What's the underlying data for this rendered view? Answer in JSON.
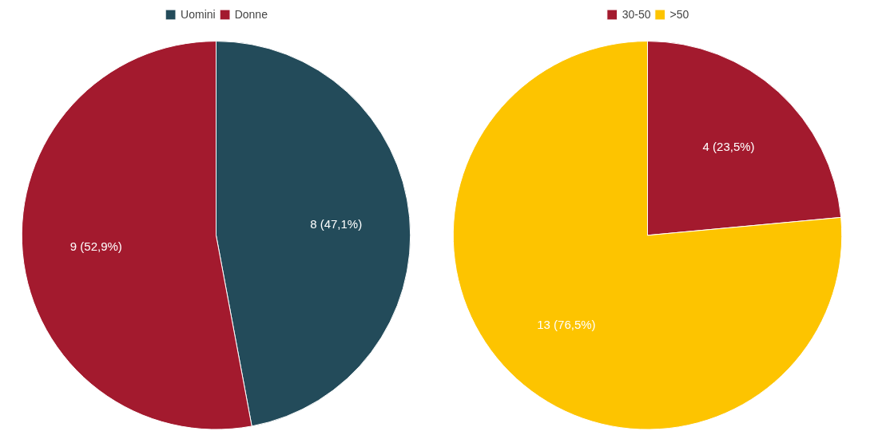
{
  "chart_data": [
    {
      "type": "pie",
      "categories": [
        "Uomini",
        "Donne"
      ],
      "values": [
        8,
        9
      ],
      "colors": [
        "#234b5a",
        "#a31a2e"
      ],
      "value_labels": [
        "8 (47,1%)",
        "9 (52,9%)"
      ],
      "legend": "top"
    },
    {
      "type": "pie",
      "categories": [
        "30-50",
        ">50"
      ],
      "values": [
        4,
        13
      ],
      "colors": [
        "#a31a2e",
        "#fdc400"
      ],
      "value_labels": [
        "4 (23,5%)",
        "13 (76,5%)"
      ],
      "legend": "top"
    }
  ]
}
